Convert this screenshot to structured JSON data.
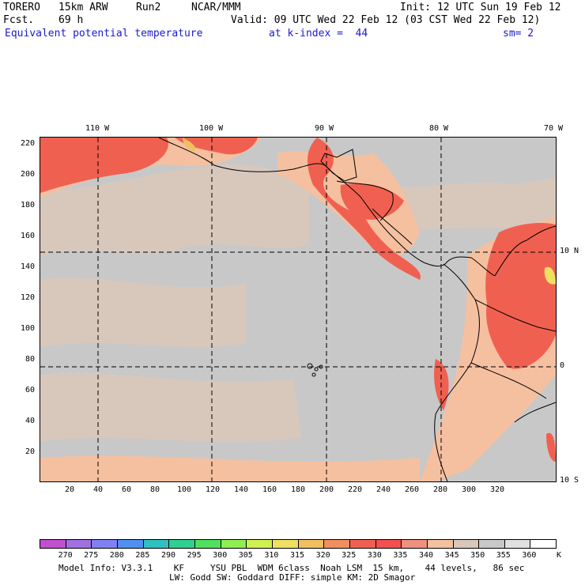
{
  "header": {
    "model": "TORERO",
    "resolution": "15km ARW",
    "run": "Run2",
    "org": "NCAR/MMM",
    "init": "Init: 12 UTC Sun 19 Feb 12",
    "fcst_label": "Fcst.",
    "fcst_value": "69 h",
    "valid": "Valid: 09 UTC Wed 22 Feb 12 (03 CST Wed 22 Feb 12)",
    "field": "Equivalent potential temperature",
    "level": "at k-index =  44",
    "smoothing": "sm= 2"
  },
  "top_ticks": [
    "110 W",
    "100 W",
    "90 W",
    "80 W",
    "70 W"
  ],
  "right_ticks": [
    "10 N",
    "0",
    "10 S"
  ],
  "y_ticks": [
    "220",
    "200",
    "180",
    "160",
    "140",
    "120",
    "100",
    "80",
    "60",
    "40",
    "20"
  ],
  "x_ticks": [
    "20",
    "40",
    "60",
    "80",
    "100",
    "120",
    "140",
    "160",
    "180",
    "200",
    "220",
    "240",
    "260",
    "280",
    "300",
    "320"
  ],
  "colorbar": {
    "unit": "K",
    "labels": [
      "270",
      "275",
      "280",
      "285",
      "290",
      "295",
      "300",
      "305",
      "310",
      "315",
      "320",
      "325",
      "330",
      "335",
      "340",
      "345",
      "350",
      "355",
      "360"
    ],
    "colors": [
      "#c050d0",
      "#a070e0",
      "#8080f0",
      "#5090f0",
      "#30c0c0",
      "#30d090",
      "#50e060",
      "#90ee50",
      "#d0f050",
      "#f0e060",
      "#f0c060",
      "#f09060",
      "#f06050",
      "#f05050",
      "#f09080",
      "#f5c0a0",
      "#d8c8bc",
      "#c8c8c8",
      "#e0e0e0",
      "#ffffff"
    ]
  },
  "footer": {
    "line1": "Model Info: V3.3.1    KF     YSU PBL  WDM 6class  Noah LSM  15 km,    44 levels,   86 sec",
    "line2": "LW: Godd SW: Goddard DIFF: simple KM: 2D Smagor"
  }
}
